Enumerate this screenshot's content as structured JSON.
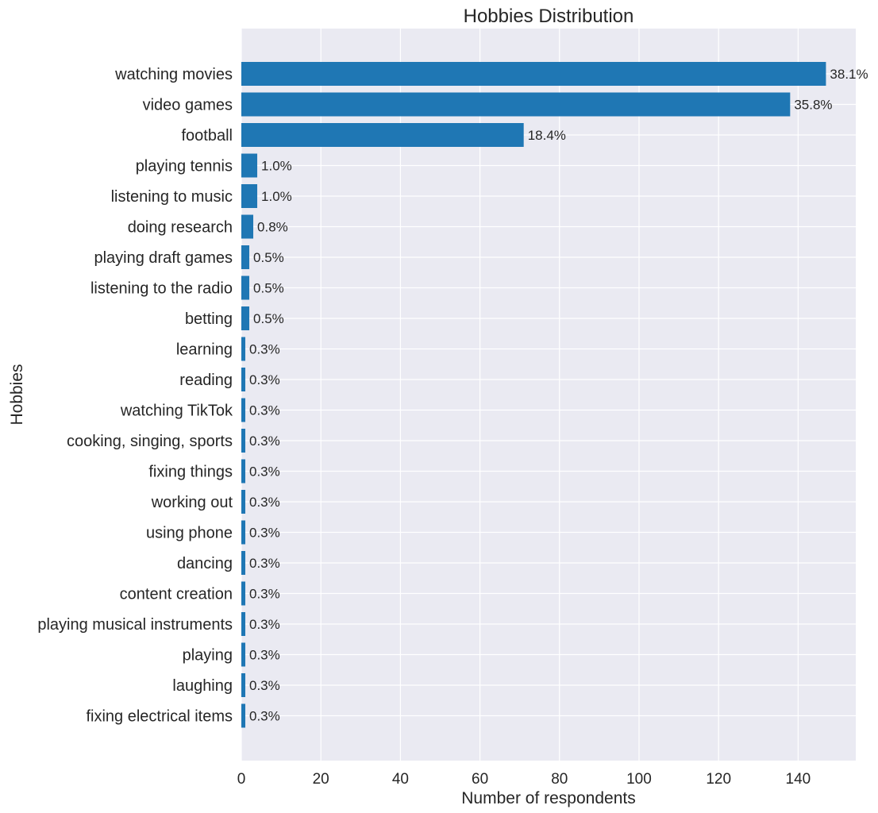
{
  "chart_data": {
    "type": "bar",
    "orientation": "horizontal",
    "title": "Hobbies Distribution",
    "xlabel": "Number of respondents",
    "ylabel": "Hobbies",
    "xlim": [
      0,
      154.5
    ],
    "xticks": [
      0,
      20,
      40,
      60,
      80,
      100,
      120,
      140
    ],
    "grid": true,
    "bar_color": "#1f77b4",
    "background_color": "#eaeaf2",
    "categories": [
      "watching movies",
      "video games",
      "football",
      "playing tennis",
      "listening to music",
      "doing research",
      "playing draft games",
      "listening to the radio",
      "betting",
      "learning",
      "reading",
      "watching TikTok",
      "cooking, singing, sports",
      "fixing things",
      "working out",
      "using phone",
      "dancing",
      "content creation",
      "playing musical instruments",
      "playing",
      "laughing",
      "fixing electrical items"
    ],
    "values": [
      147,
      138,
      71,
      4,
      4,
      3,
      2,
      2,
      2,
      1,
      1,
      1,
      1,
      1,
      1,
      1,
      1,
      1,
      1,
      1,
      1,
      1
    ],
    "data_labels": [
      "38.1%",
      "35.8%",
      "18.4%",
      "1.0%",
      "1.0%",
      "0.8%",
      "0.5%",
      "0.5%",
      "0.5%",
      "0.3%",
      "0.3%",
      "0.3%",
      "0.3%",
      "0.3%",
      "0.3%",
      "0.3%",
      "0.3%",
      "0.3%",
      "0.3%",
      "0.3%",
      "0.3%",
      "0.3%"
    ]
  }
}
